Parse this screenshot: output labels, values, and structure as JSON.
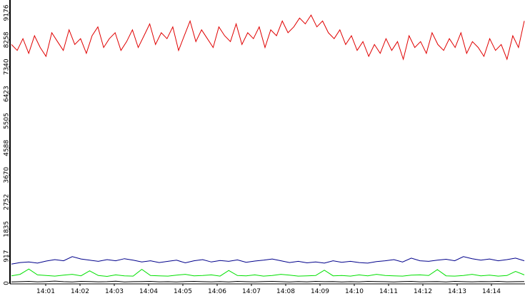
{
  "chart_data": {
    "type": "line",
    "xlim": [
      "14:00",
      "14:15"
    ],
    "xticks": [
      "14:01",
      "14:02",
      "14:03",
      "14:04",
      "14:05",
      "14:06",
      "14:07",
      "14:08",
      "14:09",
      "14:10",
      "14:11",
      "14:12",
      "14:13",
      "14:14"
    ],
    "ylim": [
      0,
      9176
    ],
    "yticks": [
      0,
      917,
      1835,
      2752,
      3670,
      4588,
      5505,
      6423,
      7340,
      8258,
      9176
    ],
    "series": [
      {
        "color": "#e00000",
        "values": [
          8100,
          7900,
          8300,
          7800,
          8400,
          8000,
          7700,
          8500,
          8200,
          7900,
          8600,
          8100,
          8300,
          7800,
          8400,
          8700,
          8000,
          8300,
          8500,
          7900,
          8200,
          8600,
          8000,
          8400,
          8800,
          8100,
          8500,
          8300,
          8700,
          7900,
          8400,
          8900,
          8200,
          8600,
          8300,
          8000,
          8700,
          8400,
          8200,
          8800,
          8100,
          8500,
          8300,
          8700,
          8000,
          8600,
          8400,
          8900,
          8500,
          8700,
          9000,
          8800,
          9100,
          8700,
          8900,
          8500,
          8300,
          8600,
          8100,
          8400,
          7900,
          8200,
          7700,
          8100,
          7800,
          8300,
          7900,
          8200,
          7600,
          8400,
          8000,
          8200,
          7800,
          8500,
          8100,
          7900,
          8300,
          8000,
          8500,
          7800,
          8200,
          8000,
          7700,
          8300,
          7900,
          8100,
          7600,
          8400,
          8000,
          8900
        ]
      },
      {
        "color": "#00008b",
        "values": [
          650,
          700,
          720,
          680,
          750,
          800,
          760,
          900,
          820,
          780,
          740,
          800,
          760,
          830,
          780,
          720,
          760,
          700,
          740,
          780,
          690,
          760,
          800,
          720,
          770,
          740,
          790,
          710,
          750,
          780,
          820,
          760,
          700,
          740,
          690,
          720,
          680,
          760,
          710,
          740,
          700,
          680,
          730,
          760,
          800,
          720,
          850,
          760,
          740,
          780,
          810,
          760,
          900,
          830,
          780,
          820,
          760,
          800,
          850,
          760
        ]
      },
      {
        "color": "#00e000",
        "values": [
          250,
          300,
          480,
          280,
          260,
          240,
          270,
          300,
          250,
          420,
          260,
          230,
          280,
          250,
          240,
          470,
          260,
          250,
          240,
          270,
          300,
          250,
          260,
          280,
          240,
          430,
          260,
          250,
          280,
          240,
          260,
          300,
          270,
          240,
          250,
          260,
          440,
          250,
          260,
          240,
          280,
          250,
          300,
          260,
          250,
          240,
          270,
          280,
          260,
          460,
          250,
          240,
          260,
          300,
          250,
          270,
          240,
          260,
          400,
          280
        ]
      },
      {
        "color": "#000000",
        "values": [
          40,
          50,
          60,
          45,
          55,
          70,
          50,
          40,
          60,
          55,
          45,
          50,
          65,
          40,
          50,
          55,
          60,
          45,
          50,
          40,
          55,
          60,
          50,
          45,
          55,
          40,
          60,
          50,
          45,
          55,
          60,
          50,
          40,
          55,
          45,
          60,
          50,
          55,
          40,
          50,
          45,
          60,
          55,
          50,
          40,
          55,
          60,
          45,
          50,
          55,
          40,
          60,
          50,
          45,
          55,
          50,
          60,
          45,
          50,
          55
        ]
      }
    ]
  }
}
